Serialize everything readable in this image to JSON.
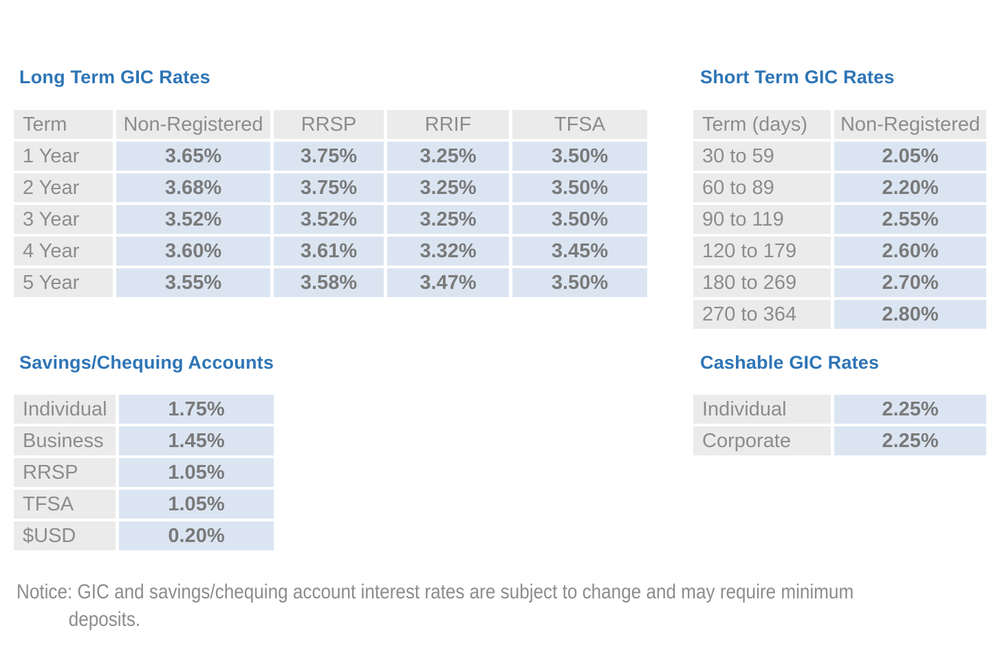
{
  "colors": {
    "heading_blue": "#2E75B6",
    "rate_cell_blue": "#DBE5F2",
    "label_cell_gray": "#EBEBEB",
    "label_text_gray": "#8C8C8C",
    "value_text_gray": "#7A7A7A"
  },
  "long_term": {
    "title": "Long Term GIC Rates",
    "headers": [
      "Term",
      "Non-Registered",
      "RRSP",
      "RRIF",
      "TFSA"
    ],
    "rows": [
      {
        "term": "1 Year",
        "values": [
          "3.65%",
          "3.75%",
          "3.25%",
          "3.50%"
        ]
      },
      {
        "term": "2 Year",
        "values": [
          "3.68%",
          "3.75%",
          "3.25%",
          "3.50%"
        ]
      },
      {
        "term": "3 Year",
        "values": [
          "3.52%",
          "3.52%",
          "3.25%",
          "3.50%"
        ]
      },
      {
        "term": "4 Year",
        "values": [
          "3.60%",
          "3.61%",
          "3.32%",
          "3.45%"
        ]
      },
      {
        "term": "5 Year",
        "values": [
          "3.55%",
          "3.58%",
          "3.47%",
          "3.50%"
        ]
      }
    ]
  },
  "short_term": {
    "title": "Short Term GIC Rates",
    "headers": [
      "Term (days)",
      "Non-Registered"
    ],
    "rows": [
      {
        "term": "30 to 59",
        "value": "2.05%"
      },
      {
        "term": "60 to 89",
        "value": "2.20%"
      },
      {
        "term": "90 to 119",
        "value": "2.55%"
      },
      {
        "term": "120 to 179",
        "value": "2.60%"
      },
      {
        "term": "180 to 269",
        "value": "2.70%"
      },
      {
        "term": "270 to 364",
        "value": "2.80%"
      }
    ]
  },
  "savings": {
    "title": "Savings/Chequing Accounts",
    "rows": [
      {
        "label": "Individual",
        "value": "1.75%"
      },
      {
        "label": "Business",
        "value": "1.45%"
      },
      {
        "label": "RRSP",
        "value": "1.05%"
      },
      {
        "label": "TFSA",
        "value": "1.05%"
      },
      {
        "label": "$USD",
        "value": "0.20%"
      }
    ]
  },
  "cashable": {
    "title": "Cashable GIC Rates",
    "rows": [
      {
        "label": "Individual",
        "value": "2.25%"
      },
      {
        "label": "Corporate",
        "value": "2.25%"
      }
    ]
  },
  "notice": {
    "line1": "Notice: GIC and savings/chequing account interest rates are subject to change and may require minimum",
    "line2": "deposits."
  }
}
